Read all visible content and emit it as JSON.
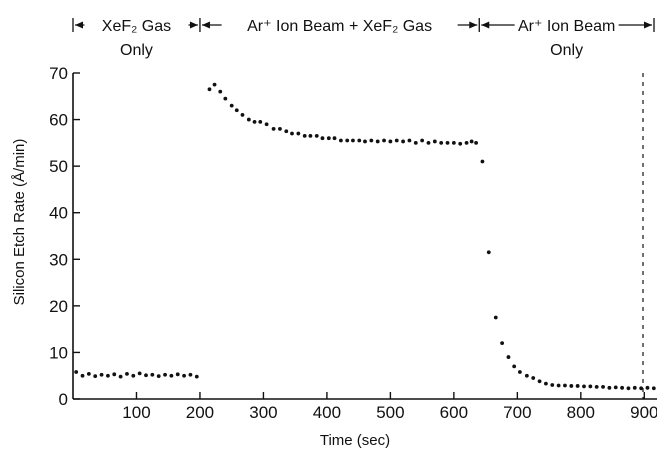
{
  "chart_data": {
    "type": "scatter",
    "title": "",
    "xlabel": "Time (sec)",
    "ylabel": "Silicon Etch Rate (Å/min)",
    "xlim": [
      0,
      920
    ],
    "ylim": [
      0,
      70
    ],
    "x_ticks": [
      100,
      200,
      300,
      400,
      500,
      600,
      700,
      800,
      900
    ],
    "x_tick_labels": [
      "100",
      "200",
      "300",
      "400",
      "500",
      "600",
      "700",
      "800",
      "900"
    ],
    "y_ticks": [
      0,
      10,
      20,
      30,
      40,
      50,
      60,
      70
    ],
    "y_tick_labels": [
      "0",
      "10",
      "20",
      "30",
      "40",
      "50",
      "60",
      "70"
    ],
    "grid": false,
    "phases": [
      {
        "range": [
          0,
          200
        ],
        "label_line1": "XeF₂ Gas",
        "label_line2": "Only"
      },
      {
        "range": [
          200,
          640
        ],
        "label_line1": "Ar⁺ Ion Beam + XeF₂ Gas",
        "label_line2": ""
      },
      {
        "range": [
          640,
          920
        ],
        "label_line1": "Ar⁺ Ion Beam",
        "label_line2": "Only"
      }
    ],
    "series": [
      {
        "points": [
          [
            5,
            5.8
          ],
          [
            15,
            5.0
          ],
          [
            25,
            5.4
          ],
          [
            35,
            4.9
          ],
          [
            45,
            5.2
          ],
          [
            55,
            5.0
          ],
          [
            65,
            5.3
          ],
          [
            75,
            4.8
          ],
          [
            85,
            5.4
          ],
          [
            95,
            5.0
          ],
          [
            105,
            5.5
          ],
          [
            115,
            5.1
          ],
          [
            125,
            5.2
          ],
          [
            135,
            4.9
          ],
          [
            145,
            5.2
          ],
          [
            155,
            5.0
          ],
          [
            165,
            5.3
          ],
          [
            175,
            5.0
          ],
          [
            185,
            5.2
          ],
          [
            195,
            4.8
          ],
          [
            215,
            66.5
          ],
          [
            223,
            67.5
          ],
          [
            232,
            66.0
          ],
          [
            240,
            64.5
          ],
          [
            250,
            63.0
          ],
          [
            258,
            62.0
          ],
          [
            267,
            61.0
          ],
          [
            277,
            60.0
          ],
          [
            286,
            59.5
          ],
          [
            295,
            59.5
          ],
          [
            305,
            59.0
          ],
          [
            316,
            58.0
          ],
          [
            326,
            58.0
          ],
          [
            336,
            57.5
          ],
          [
            345,
            57.0
          ],
          [
            355,
            57.0
          ],
          [
            365,
            56.5
          ],
          [
            374,
            56.5
          ],
          [
            384,
            56.5
          ],
          [
            393,
            56.0
          ],
          [
            403,
            56.0
          ],
          [
            412,
            56.0
          ],
          [
            422,
            55.5
          ],
          [
            432,
            55.5
          ],
          [
            441,
            55.5
          ],
          [
            451,
            55.5
          ],
          [
            460,
            55.3
          ],
          [
            470,
            55.5
          ],
          [
            480,
            55.3
          ],
          [
            490,
            55.5
          ],
          [
            500,
            55.3
          ],
          [
            510,
            55.5
          ],
          [
            520,
            55.3
          ],
          [
            530,
            55.5
          ],
          [
            540,
            55.0
          ],
          [
            550,
            55.5
          ],
          [
            560,
            55.0
          ],
          [
            570,
            55.3
          ],
          [
            580,
            55.0
          ],
          [
            590,
            55.0
          ],
          [
            600,
            55.0
          ],
          [
            610,
            54.8
          ],
          [
            620,
            55.0
          ],
          [
            628,
            55.3
          ],
          [
            635,
            55.0
          ],
          [
            645,
            51.0
          ],
          [
            655,
            31.5
          ],
          [
            666,
            17.5
          ],
          [
            676,
            12.0
          ],
          [
            686,
            9.0
          ],
          [
            695,
            7.0
          ],
          [
            704,
            5.8
          ],
          [
            715,
            5.0
          ],
          [
            725,
            4.5
          ],
          [
            735,
            3.8
          ],
          [
            745,
            3.3
          ],
          [
            755,
            3.0
          ],
          [
            765,
            2.9
          ],
          [
            775,
            2.9
          ],
          [
            785,
            2.8
          ],
          [
            795,
            2.8
          ],
          [
            805,
            2.7
          ],
          [
            815,
            2.7
          ],
          [
            825,
            2.6
          ],
          [
            835,
            2.6
          ],
          [
            845,
            2.4
          ],
          [
            855,
            2.5
          ],
          [
            865,
            2.4
          ],
          [
            875,
            2.3
          ],
          [
            885,
            2.4
          ],
          [
            895,
            2.3
          ],
          [
            905,
            2.4
          ],
          [
            915,
            2.3
          ]
        ]
      }
    ]
  }
}
